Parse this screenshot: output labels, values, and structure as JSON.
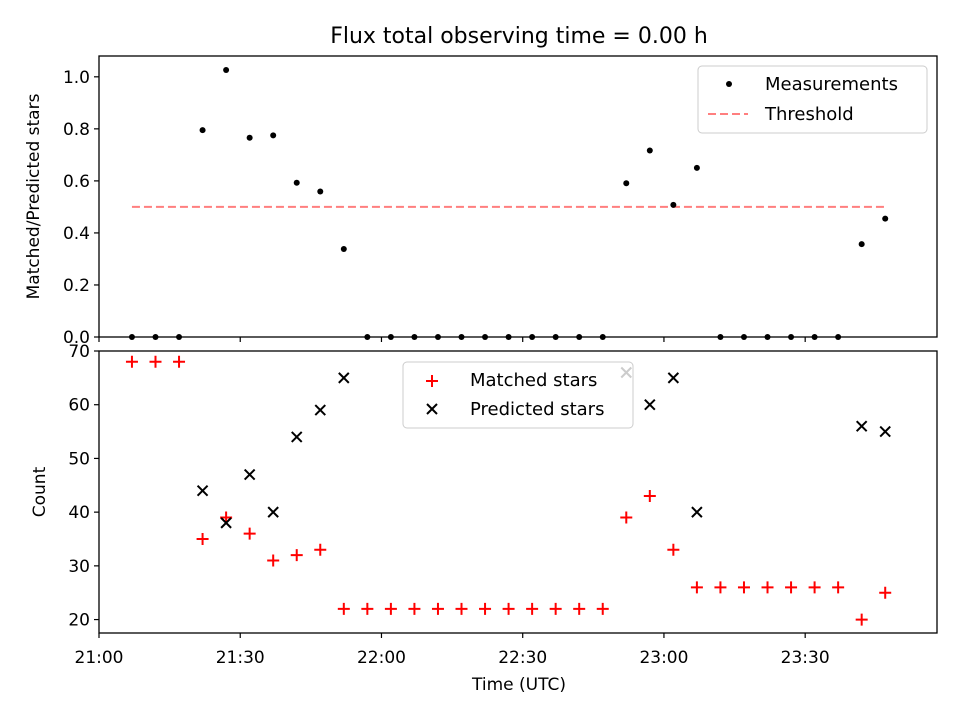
{
  "chart_data": [
    {
      "type": "scatter",
      "title": "Flux total observing time = 0.00 h",
      "ylabel": "Matched/Predicted stars",
      "ylim": [
        0,
        1.08
      ],
      "yticks": [
        "0.0",
        "0.2",
        "0.4",
        "0.6",
        "0.8",
        "1.0"
      ],
      "legend_position": "top-right",
      "series": [
        {
          "name": "Measurements",
          "marker": "dot",
          "color": "#000000",
          "x": [
            "21:07",
            "21:12",
            "21:17",
            "21:22",
            "21:27",
            "21:32",
            "21:37",
            "21:42",
            "21:47",
            "21:52",
            "21:57",
            "22:02",
            "22:07",
            "22:12",
            "22:17",
            "22:22",
            "22:27",
            "22:32",
            "22:37",
            "22:42",
            "22:47",
            "22:52",
            "22:57",
            "23:02",
            "23:07",
            "23:12",
            "23:17",
            "23:22",
            "23:27",
            "23:32",
            "23:37",
            "23:42",
            "23:47"
          ],
          "y": [
            0,
            0,
            0,
            0.795,
            1.026,
            0.766,
            0.775,
            0.593,
            0.559,
            0.338,
            0,
            0,
            0,
            0,
            0,
            0,
            0,
            0,
            0,
            0,
            0,
            0.591,
            0.717,
            0.508,
            0.65,
            0,
            0,
            0,
            0,
            0,
            0,
            0.357,
            0.455
          ]
        },
        {
          "name": "Threshold",
          "style": "dashed",
          "color": "#ff7f7f",
          "x": [
            "21:07",
            "23:47"
          ],
          "y": [
            0.5,
            0.5
          ]
        }
      ]
    },
    {
      "type": "scatter",
      "xlabel": "Time (UTC)",
      "ylabel": "Count",
      "ylim": [
        17.5,
        70
      ],
      "xlim": [
        "21:00",
        "23:58"
      ],
      "yticks": [
        "20",
        "30",
        "40",
        "50",
        "60",
        "70"
      ],
      "xticks": [
        "21:00",
        "21:30",
        "22:00",
        "22:30",
        "23:00",
        "23:30"
      ],
      "legend_position": "top-center",
      "series": [
        {
          "name": "Matched stars",
          "marker": "plus",
          "color": "#ff0000",
          "x": [
            "21:07",
            "21:12",
            "21:17",
            "21:22",
            "21:27",
            "21:32",
            "21:37",
            "21:42",
            "21:47",
            "21:52",
            "21:57",
            "22:02",
            "22:07",
            "22:12",
            "22:17",
            "22:22",
            "22:27",
            "22:32",
            "22:37",
            "22:42",
            "22:47",
            "22:52",
            "22:57",
            "23:02",
            "23:07",
            "23:12",
            "23:17",
            "23:22",
            "23:27",
            "23:32",
            "23:37",
            "23:42",
            "23:47"
          ],
          "y": [
            68,
            68,
            68,
            35,
            39,
            36,
            31,
            32,
            33,
            22,
            22,
            22,
            22,
            22,
            22,
            22,
            22,
            22,
            22,
            22,
            22,
            39,
            43,
            33,
            26,
            26,
            26,
            26,
            26,
            26,
            26,
            20,
            25
          ]
        },
        {
          "name": "Predicted stars",
          "marker": "x",
          "color": "#000000",
          "x": [
            "21:22",
            "21:27",
            "21:32",
            "21:37",
            "21:42",
            "21:47",
            "21:52",
            "22:52",
            "22:57",
            "23:02",
            "23:07",
            "23:42",
            "23:47"
          ],
          "y": [
            44,
            38,
            47,
            40,
            54,
            59,
            65,
            66,
            60,
            65,
            40,
            56,
            55
          ]
        }
      ]
    }
  ]
}
